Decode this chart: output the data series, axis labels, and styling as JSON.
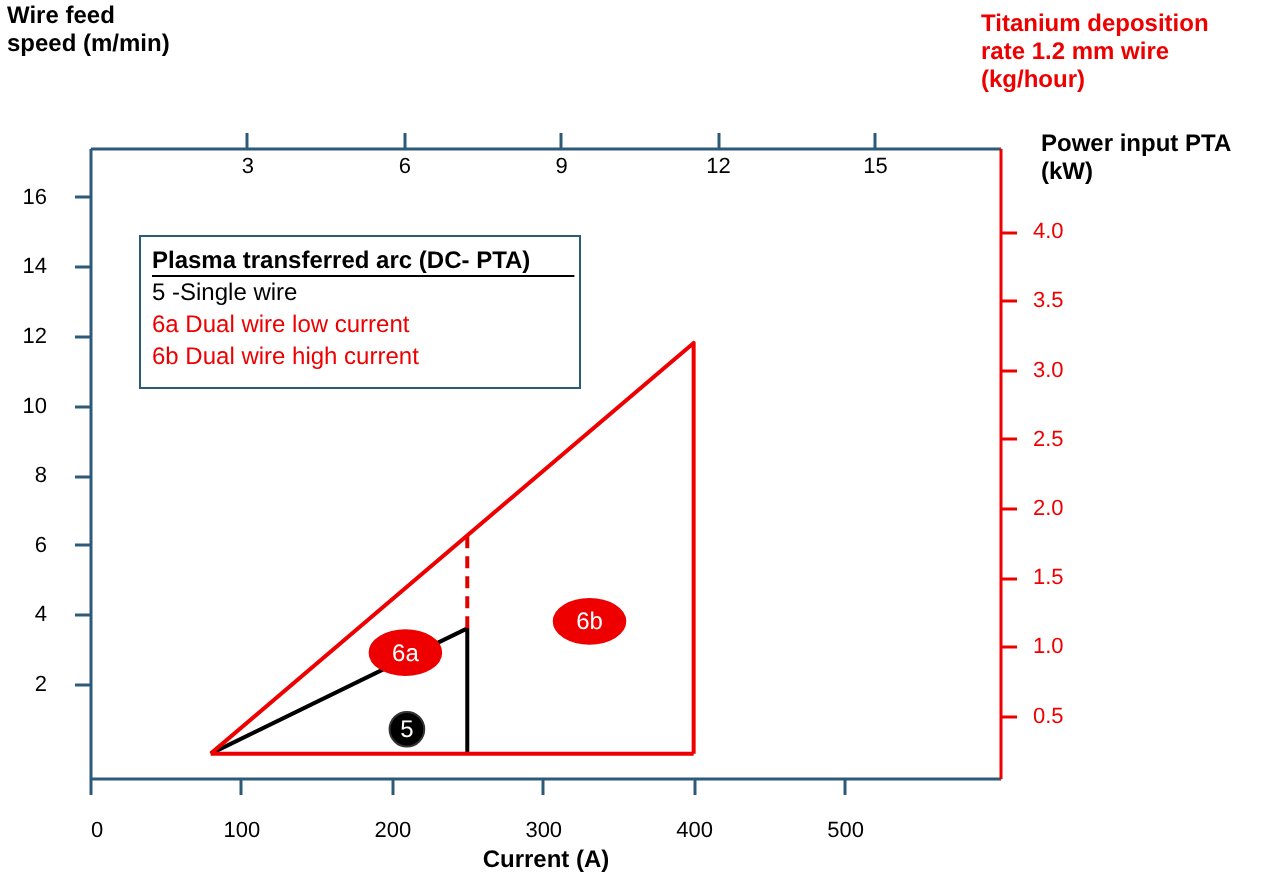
{
  "chart_data": {
    "type": "line",
    "xlabel": "Current (A)",
    "ylabel": "Wire feed speed (m/min)",
    "x2label": "Power input PTA (kW)",
    "y2label": "Titanium deposition rate 1.2 mm wire (kg/hour)",
    "xlim": [
      0,
      603
    ],
    "xticks": [
      0,
      100,
      200,
      300,
      400,
      500
    ],
    "ylim": [
      -0.7,
      17.4
    ],
    "yticks": [
      2,
      4,
      6,
      8,
      10,
      12,
      14,
      16
    ],
    "x2lim": [
      0,
      17.4
    ],
    "x2ticks": [
      3,
      6,
      9,
      12,
      15
    ],
    "y2lim": [
      0.05,
      4.6
    ],
    "y2ticks": [
      0.5,
      {
        "value": 1,
        "label": "1.0"
      },
      1.5,
      {
        "value": 2,
        "label": "2.0"
      },
      2.5,
      {
        "value": 3,
        "label": "3.0"
      },
      3.5,
      {
        "value": 4,
        "label": "4.0"
      }
    ],
    "grid": false,
    "legend": "top left",
    "legend_title": "Plasma transferred arc (DC- PTA)",
    "series": [
      {
        "name": "5 -Single wire",
        "color": "#000000",
        "x": [
          80,
          250,
          250
        ],
        "values": [
          0,
          3.6,
          0
        ]
      },
      {
        "color": "#e00000",
        "x": [
          250,
          250
        ],
        "values": [
          3.6,
          6.3
        ],
        "line_style": "dashed"
      },
      {
        "color": "#ee0000",
        "x": [
          80,
          400,
          400
        ],
        "values": [
          0,
          11.8,
          0
        ]
      },
      {
        "color": "#ee0000",
        "x": [
          80,
          400
        ],
        "values": [
          0,
          0
        ]
      }
    ],
    "annotations": [
      "6a Dual wire low current",
      "6b Dual wire high current",
      {
        "text": "5",
        "x": 210,
        "y": 0.7
      },
      {
        "text": "6a",
        "x": 209,
        "y": 2.9
      },
      {
        "text": "6b",
        "x": 331,
        "y": 3.8
      }
    ]
  }
}
